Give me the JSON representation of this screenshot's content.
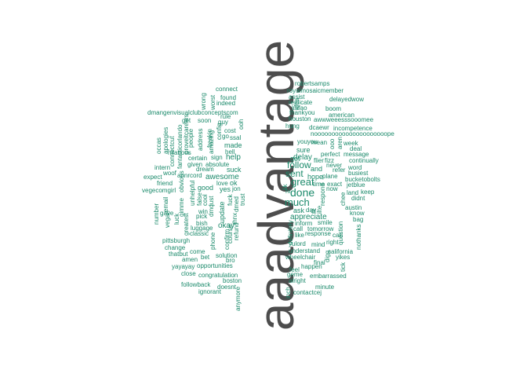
{
  "colors": {
    "background": "#ffffff",
    "dominant_word": "#4d4d4d",
    "words": "#1b8a6b"
  },
  "words": [
    {
      "text": "aaadvantage",
      "weight": 1.0,
      "rotated": true
    },
    {
      "text": "robertsamps",
      "weight": 0.05,
      "rotated": false
    },
    {
      "text": "royalmosaicmember",
      "weight": 0.05,
      "rotated": false
    },
    {
      "text": "assist",
      "weight": 0.05,
      "rotated": false
    },
    {
      "text": "delayedwow",
      "weight": 0.05,
      "rotated": false
    },
    {
      "text": "replicate",
      "weight": 0.05,
      "rotated": false
    },
    {
      "text": "lmfao",
      "weight": 0.05,
      "rotated": false
    },
    {
      "text": "boom",
      "weight": 0.05,
      "rotated": false
    },
    {
      "text": "thankyou",
      "weight": 0.05,
      "rotated": false
    },
    {
      "text": "american",
      "weight": 0.05,
      "rotated": false
    },
    {
      "text": "houston",
      "weight": 0.05,
      "rotated": false
    },
    {
      "text": "awwweeesssooomee",
      "weight": 0.05,
      "rotated": false
    },
    {
      "text": "hung",
      "weight": 0.05,
      "rotated": false
    },
    {
      "text": "dcaewr",
      "weight": 0.05,
      "rotated": false
    },
    {
      "text": "incompetence",
      "weight": 0.05,
      "rotated": false
    },
    {
      "text": "nooooooooooooooooooooope",
      "weight": 0.05,
      "rotated": false
    },
    {
      "text": "youyou",
      "weight": 0.05,
      "rotated": false
    },
    {
      "text": "mean",
      "weight": 0.05,
      "rotated": false
    },
    {
      "text": "week",
      "weight": 0.05,
      "rotated": false
    },
    {
      "text": "deal",
      "weight": 0.05,
      "rotated": false
    },
    {
      "text": "sure",
      "weight": 0.07,
      "rotated": false
    },
    {
      "text": "perfect",
      "weight": 0.05,
      "rotated": false
    },
    {
      "text": "message",
      "weight": 0.05,
      "rotated": false
    },
    {
      "text": "got",
      "weight": 0.07,
      "rotated": true
    },
    {
      "text": "delay",
      "weight": 0.08,
      "rotated": false
    },
    {
      "text": "flier",
      "weight": 0.05,
      "rotated": false
    },
    {
      "text": "fizz",
      "weight": 0.05,
      "rotated": false
    },
    {
      "text": "continually",
      "weight": 0.05,
      "rotated": false
    },
    {
      "text": "follow",
      "weight": 0.1,
      "rotated": false
    },
    {
      "text": "never",
      "weight": 0.05,
      "rotated": false
    },
    {
      "text": "word",
      "weight": 0.05,
      "rotated": false
    },
    {
      "text": "and",
      "weight": 0.07,
      "rotated": false
    },
    {
      "text": "refer",
      "weight": 0.05,
      "rotated": false
    },
    {
      "text": "busiest",
      "weight": 0.05,
      "rotated": false
    },
    {
      "text": "sent",
      "weight": 0.1,
      "rotated": false
    },
    {
      "text": "hope",
      "weight": 0.07,
      "rotated": false
    },
    {
      "text": "plane",
      "weight": 0.05,
      "rotated": false
    },
    {
      "text": "bucketobolts",
      "weight": 0.05,
      "rotated": false
    },
    {
      "text": "great",
      "weight": 0.12,
      "rotated": false
    },
    {
      "text": "time",
      "weight": 0.06,
      "rotated": false
    },
    {
      "text": "exact",
      "weight": 0.05,
      "rotated": false
    },
    {
      "text": "jetblue",
      "weight": 0.05,
      "rotated": false
    },
    {
      "text": "done",
      "weight": 0.11,
      "rotated": false
    },
    {
      "text": "now",
      "weight": 0.05,
      "rotated": false
    },
    {
      "text": "land",
      "weight": 0.05,
      "rotated": false
    },
    {
      "text": "keep",
      "weight": 0.05,
      "rotated": false
    },
    {
      "text": "much",
      "weight": 0.12,
      "rotated": false
    },
    {
      "text": "didnt",
      "weight": 0.05,
      "rotated": false
    },
    {
      "text": "ask",
      "weight": 0.07,
      "rotated": false
    },
    {
      "text": "day",
      "weight": 0.06,
      "rotated": false
    },
    {
      "text": "austin",
      "weight": 0.05,
      "rotated": false
    },
    {
      "text": "appreciate",
      "weight": 0.09,
      "rotated": false
    },
    {
      "text": "know",
      "weight": 0.06,
      "rotated": false
    },
    {
      "text": "bag",
      "weight": 0.05,
      "rotated": false
    },
    {
      "text": "inform",
      "weight": 0.05,
      "rotated": false
    },
    {
      "text": "smile",
      "weight": 0.05,
      "rotated": false
    },
    {
      "text": "call",
      "weight": 0.05,
      "rotated": false
    },
    {
      "text": "tomorrow",
      "weight": 0.05,
      "rotated": false
    },
    {
      "text": "like",
      "weight": 0.05,
      "rotated": false
    },
    {
      "text": "response",
      "weight": 0.05,
      "rotated": false
    },
    {
      "text": "can",
      "weight": 0.05,
      "rotated": false
    },
    {
      "text": "yulord",
      "weight": 0.05,
      "rotated": false
    },
    {
      "text": "mind",
      "weight": 0.05,
      "rotated": false
    },
    {
      "text": "right",
      "weight": 0.05,
      "rotated": false
    },
    {
      "text": "understand",
      "weight": 0.05,
      "rotated": false
    },
    {
      "text": "california",
      "weight": 0.05,
      "rotated": false
    },
    {
      "text": "wheelchair",
      "weight": 0.05,
      "rotated": false
    },
    {
      "text": "yikes",
      "weight": 0.05,
      "rotated": false
    },
    {
      "text": "final",
      "weight": 0.05,
      "rotated": false
    },
    {
      "text": "happen",
      "weight": 0.05,
      "rotated": false
    },
    {
      "text": "feel",
      "weight": 0.05,
      "rotated": false
    },
    {
      "text": "geme",
      "weight": 0.05,
      "rotated": false
    },
    {
      "text": "embarrassed",
      "weight": 0.05,
      "rotated": false
    },
    {
      "text": "alright",
      "weight": 0.05,
      "rotated": false
    },
    {
      "text": "minute",
      "weight": 0.05,
      "rotated": false
    },
    {
      "text": "contactcej",
      "weight": 0.05,
      "rotated": false
    },
    {
      "text": "connect",
      "weight": 0.05,
      "rotated": false
    },
    {
      "text": "found",
      "weight": 0.05,
      "rotated": false
    },
    {
      "text": "indeed",
      "weight": 0.05,
      "rotated": false
    },
    {
      "text": "dmangenvisualclubconceptscom",
      "weight": 0.05,
      "rotated": false
    },
    {
      "text": "rule",
      "weight": 0.05,
      "rotated": false
    },
    {
      "text": "get",
      "weight": 0.05,
      "rotated": false
    },
    {
      "text": "soon",
      "weight": 0.05,
      "rotated": false
    },
    {
      "text": "guy",
      "weight": 0.05,
      "rotated": false
    },
    {
      "text": "cost",
      "weight": 0.05,
      "rotated": false
    },
    {
      "text": "go",
      "weight": 0.05,
      "rotated": false
    },
    {
      "text": "ssal",
      "weight": 0.05,
      "rotated": false
    },
    {
      "text": "made",
      "weight": 0.07,
      "rotated": false
    },
    {
      "text": "hilarious",
      "weight": 0.05,
      "rotated": false
    },
    {
      "text": "hell",
      "weight": 0.05,
      "rotated": false
    },
    {
      "text": "certain",
      "weight": 0.05,
      "rotated": false
    },
    {
      "text": "sign",
      "weight": 0.05,
      "rotated": false
    },
    {
      "text": "help",
      "weight": 0.08,
      "rotated": false
    },
    {
      "text": "given",
      "weight": 0.05,
      "rotated": false
    },
    {
      "text": "absolute",
      "weight": 0.05,
      "rotated": false
    },
    {
      "text": "dream",
      "weight": 0.05,
      "rotated": false
    },
    {
      "text": "suck",
      "weight": 0.07,
      "rotated": false
    },
    {
      "text": "intern",
      "weight": 0.05,
      "rotated": false
    },
    {
      "text": "woof",
      "weight": 0.05,
      "rotated": false
    },
    {
      "text": "annrcord",
      "weight": 0.05,
      "rotated": false
    },
    {
      "text": "awesome",
      "weight": 0.08,
      "rotated": false
    },
    {
      "text": "expect",
      "weight": 0.05,
      "rotated": false
    },
    {
      "text": "love",
      "weight": 0.05,
      "rotated": false
    },
    {
      "text": "ok",
      "weight": 0.06,
      "rotated": false
    },
    {
      "text": "friend",
      "weight": 0.05,
      "rotated": false
    },
    {
      "text": "good",
      "weight": 0.06,
      "rotated": false
    },
    {
      "text": "yes",
      "weight": 0.07,
      "rotated": false
    },
    {
      "text": "jon",
      "weight": 0.05,
      "rotated": false
    },
    {
      "text": "vegecomgirl",
      "weight": 0.05,
      "rotated": false
    },
    {
      "text": "gave",
      "weight": 0.05,
      "rotated": false
    },
    {
      "text": "okay",
      "weight": 0.07,
      "rotated": false
    },
    {
      "text": "pick",
      "weight": 0.05,
      "rotated": false
    },
    {
      "text": "win",
      "weight": 0.05,
      "rotated": false
    },
    {
      "text": "bish",
      "weight": 0.05,
      "rotated": false
    },
    {
      "text": "luggage",
      "weight": 0.05,
      "rotated": false
    },
    {
      "text": "classic",
      "weight": 0.05,
      "rotated": false
    },
    {
      "text": "pittsburgh",
      "weight": 0.05,
      "rotated": false
    },
    {
      "text": "change",
      "weight": 0.05,
      "rotated": false
    },
    {
      "text": "come",
      "weight": 0.05,
      "rotated": false
    },
    {
      "text": "thatbut",
      "weight": 0.05,
      "rotated": false
    },
    {
      "text": "bet",
      "weight": 0.05,
      "rotated": false
    },
    {
      "text": "amen",
      "weight": 0.05,
      "rotated": false
    },
    {
      "text": "solution",
      "weight": 0.05,
      "rotated": false
    },
    {
      "text": "bro",
      "weight": 0.05,
      "rotated": false
    },
    {
      "text": "yayayay",
      "weight": 0.05,
      "rotated": false
    },
    {
      "text": "opportunities",
      "weight": 0.05,
      "rotated": false
    },
    {
      "text": "close",
      "weight": 0.05,
      "rotated": false
    },
    {
      "text": "congratulation",
      "weight": 0.05,
      "rotated": false
    },
    {
      "text": "boston",
      "weight": 0.05,
      "rotated": false
    },
    {
      "text": "followback",
      "weight": 0.05,
      "rotated": false
    },
    {
      "text": "doesnt",
      "weight": 0.05,
      "rotated": false
    },
    {
      "text": "ignorant",
      "weight": 0.05,
      "rotated": false
    },
    {
      "text": "wrong",
      "weight": 0.05,
      "rotated": true
    },
    {
      "text": "worst",
      "weight": 0.05,
      "rotated": true
    },
    {
      "text": "ooh",
      "weight": 0.05,
      "rotated": true
    },
    {
      "text": "address",
      "weight": 0.05,
      "rotated": true
    },
    {
      "text": "people",
      "weight": 0.05,
      "rotated": true
    },
    {
      "text": "fantasticorlando",
      "weight": 0.05,
      "rotated": true
    },
    {
      "text": "connectcut",
      "weight": 0.05,
      "rotated": true
    },
    {
      "text": "apologies",
      "weight": 0.05,
      "rotated": true
    },
    {
      "text": "occas",
      "weight": 0.05,
      "rotated": true
    },
    {
      "text": "proveitcareers",
      "weight": 0.05,
      "rotated": true
    },
    {
      "text": "amazing",
      "weight": 0.05,
      "rotated": true
    },
    {
      "text": "freakin",
      "weight": 0.05,
      "rotated": true
    },
    {
      "text": "config",
      "weight": 0.05,
      "rotated": true
    },
    {
      "text": "obvious",
      "weight": 0.05,
      "rotated": true
    },
    {
      "text": "unhelpful",
      "weight": 0.05,
      "rotated": true
    },
    {
      "text": "false",
      "weight": 0.05,
      "rotated": true
    },
    {
      "text": "just",
      "weight": 0.05,
      "rotated": true
    },
    {
      "text": "cool",
      "weight": 0.05,
      "rotated": true
    },
    {
      "text": "email",
      "weight": 0.05,
      "rotated": true
    },
    {
      "text": "number",
      "weight": 0.05,
      "rotated": true
    },
    {
      "text": "vegan",
      "weight": 0.05,
      "rotated": true
    },
    {
      "text": "luck",
      "weight": 0.05,
      "rotated": true
    },
    {
      "text": "gimme",
      "weight": 0.05,
      "rotated": true
    },
    {
      "text": "greatest",
      "weight": 0.05,
      "rotated": true
    },
    {
      "text": "update",
      "weight": 0.06,
      "rotated": true
    },
    {
      "text": "dmd",
      "weight": 0.05,
      "rotated": true
    },
    {
      "text": "phone",
      "weight": 0.05,
      "rotated": true
    },
    {
      "text": "confirm",
      "weight": 0.05,
      "rotated": true
    },
    {
      "text": "course",
      "weight": 0.05,
      "rotated": true
    },
    {
      "text": "refund",
      "weight": 0.05,
      "rotated": true
    },
    {
      "text": "fuck",
      "weight": 0.05,
      "rotated": true
    },
    {
      "text": "dmed",
      "weight": 0.05,
      "rotated": true
    },
    {
      "text": "thnx",
      "weight": 0.05,
      "rotated": true
    },
    {
      "text": "trust",
      "weight": 0.05,
      "rotated": true
    },
    {
      "text": "anymore",
      "weight": 0.05,
      "rotated": true
    },
    {
      "text": "idea",
      "weight": 0.05,
      "rotated": true
    },
    {
      "text": "ooo",
      "weight": 0.05,
      "rotated": true
    },
    {
      "text": "aren",
      "weight": 0.05,
      "rotated": true
    },
    {
      "text": "definitely",
      "weight": 0.05,
      "rotated": true
    },
    {
      "text": "respond",
      "weight": 0.05,
      "rotated": true
    },
    {
      "text": "question",
      "weight": 0.05,
      "rotated": true
    },
    {
      "text": "digg",
      "weight": 0.05,
      "rotated": true
    },
    {
      "text": "nothanks",
      "weight": 0.05,
      "rotated": true
    },
    {
      "text": "tick",
      "weight": 0.05,
      "rotated": true
    },
    {
      "text": "inch",
      "weight": 0.05,
      "rotated": true
    },
    {
      "text": "hi",
      "weight": 0.05,
      "rotated": false
    },
    {
      "text": "fit",
      "weight": 0.05,
      "rotated": true
    },
    {
      "text": "ilte",
      "weight": 0.05,
      "rotated": true
    },
    {
      "text": "chee",
      "weight": 0.05,
      "rotated": true
    },
    {
      "text": "lik",
      "weight": 0.05,
      "rotated": true
    }
  ]
}
